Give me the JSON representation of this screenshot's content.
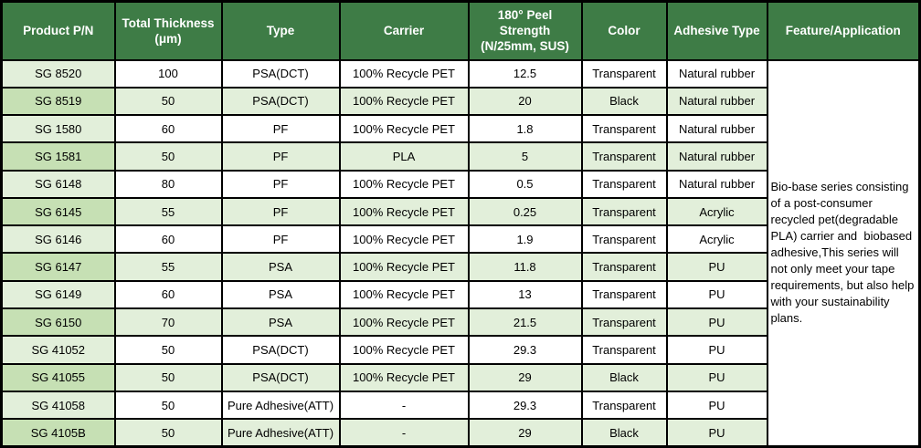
{
  "colors": {
    "header_bg": "#3E7C46",
    "header_text": "#FFFFFF",
    "row_light": "#E2EFDA",
    "row_medium": "#C6E0B4",
    "row_white": "#FFFFFF",
    "border": "#000000",
    "cell_text": "#000000"
  },
  "header": {
    "product_pn": "Product P/N",
    "total_thickness": "Total Thickness\n(μm)",
    "type": "Type",
    "carrier": "Carrier",
    "peel_strength": "180° Peel\nStrength\n(N/25mm, SUS)",
    "color": "Color",
    "adhesive_type": "Adhesive Type",
    "feature": "Feature/Application"
  },
  "feature_text": "Bio-base series consisting of a post-consumer recycled pet(degradable PLA) carrier and  biobased adhesive,This series will not only meet your tape requirements, but also help with your sustainability plans.",
  "rows": [
    {
      "pn": "SG 8520",
      "thickness": "100",
      "type": "PSA(DCT)",
      "carrier": "100% Recycle PET",
      "peel": "12.5",
      "color": "Transparent",
      "adhesive": "Natural rubber"
    },
    {
      "pn": "SG 8519",
      "thickness": "50",
      "type": "PSA(DCT)",
      "carrier": "100% Recycle PET",
      "peel": "20",
      "color": "Black",
      "adhesive": "Natural rubber"
    },
    {
      "pn": "SG 1580",
      "thickness": "60",
      "type": "PF",
      "carrier": "100% Recycle PET",
      "peel": "1.8",
      "color": "Transparent",
      "adhesive": "Natural rubber"
    },
    {
      "pn": "SG 1581",
      "thickness": "50",
      "type": "PF",
      "carrier": "PLA",
      "peel": "5",
      "color": "Transparent",
      "adhesive": "Natural rubber"
    },
    {
      "pn": "SG 6148",
      "thickness": "80",
      "type": "PF",
      "carrier": "100% Recycle PET",
      "peel": "0.5",
      "color": "Transparent",
      "adhesive": "Natural rubber"
    },
    {
      "pn": "SG 6145",
      "thickness": "55",
      "type": "PF",
      "carrier": "100% Recycle PET",
      "peel": "0.25",
      "color": "Transparent",
      "adhesive": "Acrylic"
    },
    {
      "pn": "SG 6146",
      "thickness": "60",
      "type": "PF",
      "carrier": "100% Recycle PET",
      "peel": "1.9",
      "color": "Transparent",
      "adhesive": "Acrylic"
    },
    {
      "pn": "SG 6147",
      "thickness": "55",
      "type": "PSA",
      "carrier": "100% Recycle PET",
      "peel": "11.8",
      "color": "Transparent",
      "adhesive": "PU"
    },
    {
      "pn": "SG 6149",
      "thickness": "60",
      "type": "PSA",
      "carrier": "100% Recycle PET",
      "peel": "13",
      "color": "Transparent",
      "adhesive": "PU"
    },
    {
      "pn": "SG 6150",
      "thickness": "70",
      "type": "PSA",
      "carrier": "100% Recycle PET",
      "peel": "21.5",
      "color": "Transparent",
      "adhesive": "PU"
    },
    {
      "pn": "SG 41052",
      "thickness": "50",
      "type": "PSA(DCT)",
      "carrier": "100% Recycle PET",
      "peel": "29.3",
      "color": "Transparent",
      "adhesive": "PU"
    },
    {
      "pn": "SG 41055",
      "thickness": "50",
      "type": "PSA(DCT)",
      "carrier": "100% Recycle PET",
      "peel": "29",
      "color": "Black",
      "adhesive": "PU"
    },
    {
      "pn": "SG 41058",
      "thickness": "50",
      "type": "Pure Adhesive(ATT)",
      "carrier": "-",
      "peel": "29.3",
      "color": "Transparent",
      "adhesive": "PU"
    },
    {
      "pn": "SG 4105B",
      "thickness": "50",
      "type": "Pure Adhesive(ATT)",
      "carrier": "-",
      "peel": "29",
      "color": "Black",
      "adhesive": "PU"
    }
  ]
}
